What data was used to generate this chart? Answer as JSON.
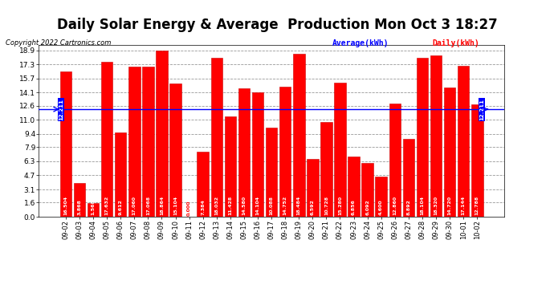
{
  "title": "Daily Solar Energy & Average  Production Mon Oct 3 18:27",
  "copyright": "Copyright 2022 Cartronics.com",
  "categories": [
    "09-02",
    "09-03",
    "09-04",
    "09-05",
    "09-06",
    "09-07",
    "09-08",
    "09-09",
    "09-10",
    "09-11",
    "09-12",
    "09-13",
    "09-14",
    "09-15",
    "09-16",
    "09-17",
    "09-18",
    "09-19",
    "09-20",
    "09-21",
    "09-22",
    "09-23",
    "09-24",
    "09-25",
    "09-26",
    "09-27",
    "09-28",
    "09-29",
    "09-30",
    "10-01",
    "10-02"
  ],
  "values": [
    16.504,
    3.868,
    1.568,
    17.632,
    9.612,
    17.06,
    17.068,
    18.864,
    15.104,
    0.0,
    7.384,
    18.032,
    11.428,
    14.58,
    14.104,
    10.088,
    14.752,
    18.484,
    6.592,
    10.728,
    15.28,
    6.856,
    6.092,
    4.6,
    12.86,
    8.892,
    18.104,
    18.32,
    14.72,
    17.144,
    12.788
  ],
  "average": 12.211,
  "bar_color": "#ff0000",
  "average_color": "#0000ff",
  "bar_edge_color": "#cc0000",
  "background_color": "#ffffff",
  "grid_color": "#999999",
  "yticks": [
    0.0,
    1.6,
    3.1,
    4.7,
    6.3,
    7.9,
    9.4,
    11.0,
    12.6,
    14.1,
    15.7,
    17.3,
    18.9
  ],
  "ylim": [
    0.0,
    19.5
  ],
  "title_fontsize": 12,
  "avg_label": "Average(kWh)",
  "daily_label": "Daily(kWh)",
  "avg_label_color": "#0000ff",
  "daily_label_color": "#ff0000"
}
